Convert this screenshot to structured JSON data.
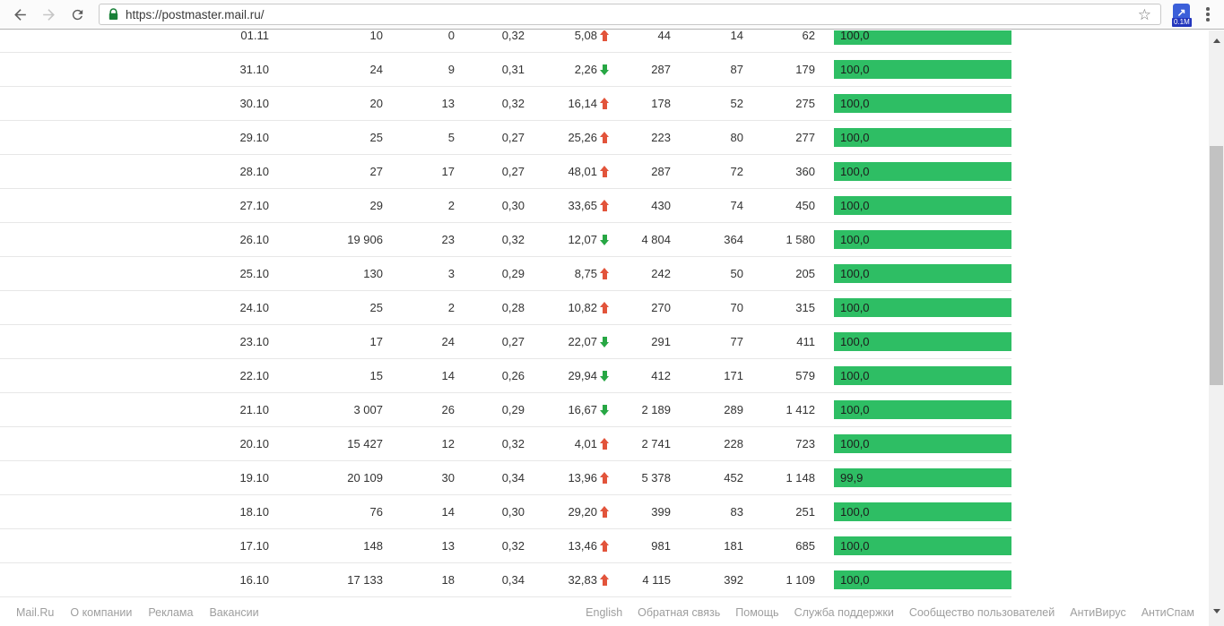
{
  "browser": {
    "url": "https://postmaster.mail.ru/",
    "extension_badge": "0.1M"
  },
  "colors": {
    "bar_green": "#2ebe64",
    "arrow_up_red": "#e2543b",
    "arrow_down_green": "#27a744",
    "lock_green": "#188038"
  },
  "table": {
    "rows": [
      {
        "date": "01.11",
        "c1": "10",
        "c2": "0",
        "c3": "0,32",
        "change": "5,08",
        "dir": "up",
        "c5": "44",
        "c6": "14",
        "c7": "62",
        "bar": "100,0"
      },
      {
        "date": "31.10",
        "c1": "24",
        "c2": "9",
        "c3": "0,31",
        "change": "2,26",
        "dir": "down",
        "c5": "287",
        "c6": "87",
        "c7": "179",
        "bar": "100,0"
      },
      {
        "date": "30.10",
        "c1": "20",
        "c2": "13",
        "c3": "0,32",
        "change": "16,14",
        "dir": "up",
        "c5": "178",
        "c6": "52",
        "c7": "275",
        "bar": "100,0"
      },
      {
        "date": "29.10",
        "c1": "25",
        "c2": "5",
        "c3": "0,27",
        "change": "25,26",
        "dir": "up",
        "c5": "223",
        "c6": "80",
        "c7": "277",
        "bar": "100,0"
      },
      {
        "date": "28.10",
        "c1": "27",
        "c2": "17",
        "c3": "0,27",
        "change": "48,01",
        "dir": "up",
        "c5": "287",
        "c6": "72",
        "c7": "360",
        "bar": "100,0"
      },
      {
        "date": "27.10",
        "c1": "29",
        "c2": "2",
        "c3": "0,30",
        "change": "33,65",
        "dir": "up",
        "c5": "430",
        "c6": "74",
        "c7": "450",
        "bar": "100,0"
      },
      {
        "date": "26.10",
        "c1": "19 906",
        "c2": "23",
        "c3": "0,32",
        "change": "12,07",
        "dir": "down",
        "c5": "4 804",
        "c6": "364",
        "c7": "1 580",
        "bar": "100,0"
      },
      {
        "date": "25.10",
        "c1": "130",
        "c2": "3",
        "c3": "0,29",
        "change": "8,75",
        "dir": "up",
        "c5": "242",
        "c6": "50",
        "c7": "205",
        "bar": "100,0"
      },
      {
        "date": "24.10",
        "c1": "25",
        "c2": "2",
        "c3": "0,28",
        "change": "10,82",
        "dir": "up",
        "c5": "270",
        "c6": "70",
        "c7": "315",
        "bar": "100,0"
      },
      {
        "date": "23.10",
        "c1": "17",
        "c2": "24",
        "c3": "0,27",
        "change": "22,07",
        "dir": "down",
        "c5": "291",
        "c6": "77",
        "c7": "411",
        "bar": "100,0"
      },
      {
        "date": "22.10",
        "c1": "15",
        "c2": "14",
        "c3": "0,26",
        "change": "29,94",
        "dir": "down",
        "c5": "412",
        "c6": "171",
        "c7": "579",
        "bar": "100,0"
      },
      {
        "date": "21.10",
        "c1": "3 007",
        "c2": "26",
        "c3": "0,29",
        "change": "16,67",
        "dir": "down",
        "c5": "2 189",
        "c6": "289",
        "c7": "1 412",
        "bar": "100,0"
      },
      {
        "date": "20.10",
        "c1": "15 427",
        "c2": "12",
        "c3": "0,32",
        "change": "4,01",
        "dir": "up",
        "c5": "2 741",
        "c6": "228",
        "c7": "723",
        "bar": "100,0"
      },
      {
        "date": "19.10",
        "c1": "20 109",
        "c2": "30",
        "c3": "0,34",
        "change": "13,96",
        "dir": "up",
        "c5": "5 378",
        "c6": "452",
        "c7": "1 148",
        "bar": "99,9"
      },
      {
        "date": "18.10",
        "c1": "76",
        "c2": "14",
        "c3": "0,30",
        "change": "29,20",
        "dir": "up",
        "c5": "399",
        "c6": "83",
        "c7": "251",
        "bar": "100,0"
      },
      {
        "date": "17.10",
        "c1": "148",
        "c2": "13",
        "c3": "0,32",
        "change": "13,46",
        "dir": "up",
        "c5": "981",
        "c6": "181",
        "c7": "685",
        "bar": "100,0"
      },
      {
        "date": "16.10",
        "c1": "17 133",
        "c2": "18",
        "c3": "0,34",
        "change": "32,83",
        "dir": "up",
        "c5": "4 115",
        "c6": "392",
        "c7": "1 109",
        "bar": "100,0"
      }
    ]
  },
  "footer": {
    "left": [
      "Mail.Ru",
      "О компании",
      "Реклама",
      "Вакансии"
    ],
    "right": [
      "English",
      "Обратная связь",
      "Помощь",
      "Служба поддержки",
      "Сообщество пользователей",
      "АнтиВирус",
      "АнтиСпам"
    ]
  }
}
